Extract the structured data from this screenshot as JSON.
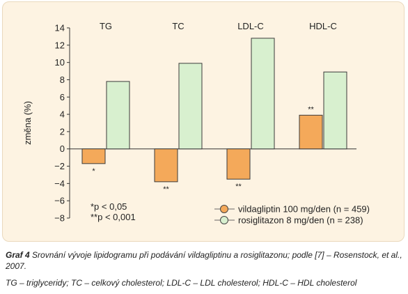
{
  "chart_data": {
    "type": "bar",
    "categories": [
      "TG",
      "TC",
      "LDL-C",
      "HDL-C"
    ],
    "series": [
      {
        "name": "vildagliptin 100 mg/den (n = 459)",
        "color": "#f4a95a",
        "values": [
          -1.7,
          -3.8,
          -3.5,
          3.9
        ]
      },
      {
        "name": "rosiglitazon 8 mg/den (n = 238)",
        "color": "#d8f0cf",
        "values": [
          7.8,
          9.9,
          12.8,
          8.9
        ]
      }
    ],
    "significance": [
      {
        "category": "TG",
        "series": 0,
        "mark": "*"
      },
      {
        "category": "TC",
        "series": 0,
        "mark": "**"
      },
      {
        "category": "LDL-C",
        "series": 0,
        "mark": "**"
      },
      {
        "category": "HDL-C",
        "series": 0,
        "mark": "**"
      }
    ],
    "ylabel": "změna (%)",
    "ylim": [
      -8,
      14
    ],
    "yticks": [
      -8,
      -6,
      -4,
      -2,
      0,
      2,
      4,
      6,
      8,
      10,
      12,
      14
    ],
    "legend_placement": "bottom-right",
    "notes": [
      "*p < 0,05",
      "**p < 0,001"
    ],
    "grid": false
  },
  "caption": {
    "label": "Graf 4",
    "text": "Srovnání vývoje lipidogramu při podávání vildagliptinu a rosiglitazonu; podle [7] – Rosenstock, et al., 2007.",
    "abbreviations": "TG – triglyceridy; TC – celkový cholesterol; LDL-C – LDL cholesterol; HDL-C – HDL cholesterol"
  }
}
